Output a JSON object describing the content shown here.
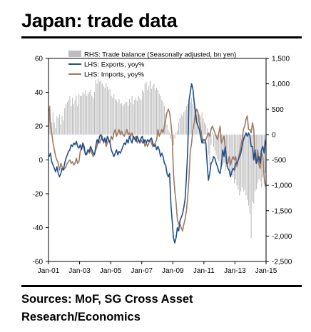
{
  "header": {
    "title": "Japan: trade data"
  },
  "footer": {
    "source_line1": "Sources: MoF, SG Cross Asset",
    "source_line2": "Research/Economics"
  },
  "chart_data": {
    "type": "bar+line",
    "colors": {
      "trade_balance": "#bdbdbd",
      "exports": "#1f4e8c",
      "imports": "#a07860"
    },
    "legend": [
      {
        "key": "trade_balance",
        "label": "RHS: Trade balance (Seasonally adjusted, bn yen)",
        "kind": "bar"
      },
      {
        "key": "exports",
        "label": "LHS: Exports, yoy%",
        "kind": "line"
      },
      {
        "key": "imports",
        "label": "LHS: Imports, yoy%",
        "kind": "line"
      }
    ],
    "legend_placement": "top-left",
    "x_ticks": [
      "Jan-01",
      "Jan-03",
      "Jan-05",
      "Jan-07",
      "Jan-09",
      "Jan-11",
      "Jan-13",
      "Jan-15"
    ],
    "x_range": [
      "2001-01",
      "2015-01"
    ],
    "y_left": {
      "ticks": [
        60,
        40,
        20,
        0,
        -20,
        -40,
        -60
      ],
      "lim": [
        -60,
        60
      ]
    },
    "y_right": {
      "ticks": [
        "1,500",
        "1,000",
        "500",
        "0",
        "-500",
        "-1,000",
        "-1,500",
        "-2,000",
        "-2,500"
      ],
      "lim": [
        -2500,
        1500
      ]
    },
    "trade_balance": {
      "2001": [
        400,
        560,
        240,
        440,
        240,
        120,
        360,
        320,
        400,
        200,
        360,
        280
      ],
      "2002": [
        520,
        600,
        640,
        680,
        760,
        560,
        720,
        600,
        680,
        760,
        560,
        800
      ],
      "2003": [
        760,
        760,
        840,
        800,
        880,
        760,
        800,
        840,
        880,
        760,
        720,
        840
      ],
      "2004": [
        1080,
        1000,
        1100,
        1040,
        1060,
        1000,
        960,
        920,
        1020,
        940,
        880,
        900
      ],
      "2005": [
        760,
        720,
        800,
        700,
        680,
        640,
        700,
        600,
        620,
        560,
        600,
        640
      ],
      "2006": [
        640,
        560,
        700,
        640,
        760,
        600,
        680,
        720,
        660,
        760,
        720,
        680
      ],
      "2007": [
        880,
        840,
        1000,
        1040,
        880,
        960,
        1060,
        900,
        960,
        1000,
        880,
        920
      ],
      "2008": [
        880,
        800,
        760,
        680,
        640,
        560,
        400,
        200,
        80,
        40,
        -80,
        -120
      ],
      "2009": [
        -200,
        -80,
        40,
        80,
        240,
        320,
        400,
        360,
        440,
        480,
        560,
        600
      ],
      "2010": [
        680,
        640,
        720,
        600,
        560,
        520,
        480,
        440,
        400,
        360,
        440,
        320
      ],
      "2011": [
        240,
        200,
        120,
        -400,
        -600,
        -200,
        40,
        -240,
        -320,
        -400,
        -480,
        -520
      ],
      "2012": [
        -600,
        -440,
        -600,
        -560,
        -720,
        -640,
        -560,
        -680,
        -760,
        -800,
        -840,
        -960
      ],
      "2013": [
        -880,
        -1000,
        -1080,
        -1200,
        -1120,
        -1040,
        -1120,
        -1080,
        -1200,
        -1280,
        -1400,
        -1560
      ],
      "2014": [
        -2040,
        -1320,
        -1360,
        -1120,
        -1080,
        -960,
        -880,
        -920,
        -1040,
        -840,
        -960,
        -760
      ]
    },
    "exports": {
      "2001": [
        2,
        4,
        -1,
        -3,
        -5,
        -7,
        -4,
        -8,
        -10,
        -8,
        -5,
        -6
      ],
      "2002": [
        -2,
        1,
        3,
        5,
        6,
        9,
        8,
        10,
        9,
        11,
        8,
        7
      ],
      "2003": [
        9,
        6,
        10,
        8,
        3,
        4,
        6,
        5,
        8,
        6,
        4,
        3
      ],
      "2004": [
        8,
        12,
        10,
        14,
        15,
        12,
        11,
        13,
        10,
        14,
        12,
        10
      ],
      "2005": [
        6,
        4,
        2,
        4,
        6,
        3,
        5,
        4,
        6,
        8,
        10,
        9
      ],
      "2006": [
        12,
        10,
        14,
        12,
        10,
        14,
        13,
        11,
        14,
        12,
        10,
        13
      ],
      "2007": [
        14,
        10,
        12,
        10,
        12,
        11,
        12,
        13,
        10,
        8,
        9,
        6
      ],
      "2008": [
        8,
        6,
        2,
        4,
        2,
        -2,
        -3,
        -8,
        -10,
        -8,
        -26,
        -36
      ],
      "2009": [
        -46,
        -49,
        -46,
        -40,
        -42,
        -36,
        -34,
        -32,
        -28,
        -23,
        -10,
        5
      ],
      "2010": [
        35,
        40,
        45,
        42,
        34,
        28,
        22,
        20,
        18,
        14,
        10,
        12
      ],
      "2011": [
        12,
        10,
        -2,
        -12,
        -8,
        -2,
        -1,
        2,
        1,
        -2,
        -4,
        -7
      ],
      "2012": [
        -8,
        -3,
        6,
        2,
        8,
        -1,
        -5,
        -6,
        -10,
        -7,
        -5,
        -6
      ],
      "2013": [
        -2,
        -2,
        0,
        2,
        4,
        8,
        12,
        14,
        16,
        14,
        16,
        14
      ],
      "2014": [
        8,
        8,
        0,
        6,
        -2,
        0,
        2,
        -2,
        6,
        8,
        4,
        12
      ]
    },
    "imports": {
      "2001": [
        32,
        20,
        16,
        10,
        6,
        2,
        0,
        -2,
        -6,
        -2,
        -4,
        -6
      ],
      "2002": [
        -5,
        -4,
        -2,
        -1,
        0,
        -2,
        -1,
        -3,
        -2,
        1,
        -2,
        -1
      ],
      "2003": [
        5,
        7,
        9,
        6,
        4,
        3,
        6,
        4,
        6,
        4,
        2,
        4
      ],
      "2004": [
        6,
        8,
        12,
        10,
        12,
        14,
        10,
        12,
        8,
        10,
        12,
        10
      ],
      "2005": [
        14,
        12,
        16,
        18,
        14,
        16,
        18,
        15,
        17,
        15,
        14,
        16
      ],
      "2006": [
        18,
        15,
        16,
        14,
        16,
        13,
        12,
        14,
        10,
        12,
        11,
        12
      ],
      "2007": [
        10,
        12,
        8,
        10,
        8,
        10,
        12,
        10,
        8,
        9,
        10,
        12
      ],
      "2008": [
        18,
        14,
        16,
        18,
        16,
        20,
        24,
        28,
        30,
        28,
        22,
        14
      ],
      "2009": [
        -8,
        -18,
        -25,
        -35,
        -38,
        -38,
        -40,
        -42,
        -38,
        -35,
        -30,
        -22
      ],
      "2010": [
        -10,
        5,
        10,
        18,
        22,
        28,
        30,
        28,
        22,
        18,
        14,
        10
      ],
      "2011": [
        10,
        12,
        14,
        16,
        14,
        18,
        20,
        18,
        16,
        14,
        12,
        16
      ],
      "2012": [
        20,
        10,
        12,
        14,
        8,
        -2,
        -2,
        2,
        -3,
        0,
        2,
        0
      ],
      "2013": [
        2,
        -4,
        0,
        4,
        8,
        12,
        18,
        20,
        24,
        26,
        18,
        18
      ],
      "2014": [
        16,
        22,
        18,
        2,
        -2,
        6,
        -3,
        -5,
        4,
        2,
        -10,
        -16
      ]
    }
  }
}
